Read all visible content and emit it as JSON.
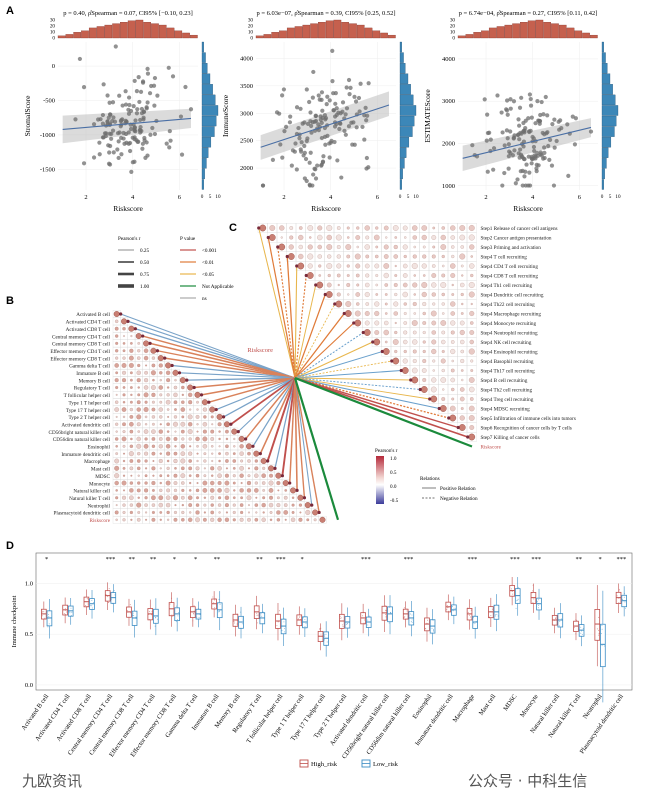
{
  "panels": {
    "a": "A",
    "b": "B",
    "c": "C",
    "d": "D"
  },
  "chart_data": [
    {
      "type": "scatter",
      "panel": "A",
      "subtitle": "p = 0.40, ρ̂Spearman = 0.07, CI95% [−0.10, 0.23]",
      "xlabel": "Riskscore",
      "ylabel": "StromalScore",
      "xlim": [
        0.8,
        6.8
      ],
      "ylim": [
        -1800,
        350
      ],
      "xticks": [
        2,
        4,
        6
      ],
      "yticks": [
        -1500,
        -1000,
        -500,
        0
      ],
      "fit": {
        "x": [
          1,
          6.5
        ],
        "y": [
          -920,
          -760
        ],
        "band_lo": [
          -1120,
          -900
        ],
        "band_hi": [
          -720,
          -620
        ]
      },
      "top_hist": [
        3,
        5,
        8,
        10,
        14,
        16,
        18,
        20,
        22,
        24,
        25,
        22,
        20,
        18,
        14,
        10,
        7,
        4
      ],
      "right_hist": [
        2,
        4,
        6,
        9,
        12,
        15,
        18,
        16,
        14,
        10,
        7,
        5,
        3,
        2
      ],
      "hist_ticks_top": [
        "0",
        "10",
        "20",
        "30"
      ],
      "hist_ticks_right": [
        "0",
        "5",
        "10"
      ]
    },
    {
      "type": "scatter",
      "panel": "A",
      "subtitle": "p = 6.03e−07, ρ̂Spearman = 0.39, CI95% [0.25, 0.52]",
      "xlabel": "Riskscore",
      "ylabel": "ImmuneScore",
      "xlim": [
        0.8,
        6.8
      ],
      "ylim": [
        1600,
        4300
      ],
      "xticks": [
        2,
        4,
        6
      ],
      "yticks": [
        2000,
        2500,
        3000,
        3500,
        4000
      ],
      "fit": {
        "x": [
          1,
          6.5
        ],
        "y": [
          2380,
          3150
        ],
        "band_lo": [
          2150,
          2950
        ],
        "band_hi": [
          2600,
          3400
        ]
      },
      "top_hist": [
        3,
        5,
        8,
        10,
        14,
        16,
        18,
        20,
        22,
        24,
        25,
        22,
        20,
        18,
        14,
        10,
        7,
        4
      ],
      "right_hist": [
        2,
        4,
        6,
        9,
        12,
        15,
        18,
        16,
        14,
        10,
        7,
        5,
        3,
        2
      ],
      "hist_ticks_top": [
        "0",
        "10",
        "20",
        "30"
      ],
      "hist_ticks_right": [
        "0",
        "5",
        "10"
      ]
    },
    {
      "type": "scatter",
      "panel": "A",
      "subtitle": "p = 6.74e−04, ρ̂Spearman = 0.27, CI95% [0.11, 0.42]",
      "xlabel": "Riskscore",
      "ylabel": "ESTIMATEScore",
      "xlim": [
        0.8,
        6.8
      ],
      "ylim": [
        900,
        4400
      ],
      "xticks": [
        2,
        4,
        6
      ],
      "yticks": [
        1000,
        2000,
        3000,
        4000
      ],
      "fit": {
        "x": [
          1,
          6.5
        ],
        "y": [
          1650,
          2380
        ],
        "band_lo": [
          1350,
          2150
        ],
        "band_hi": [
          1950,
          2600
        ]
      },
      "top_hist": [
        3,
        5,
        8,
        10,
        14,
        16,
        18,
        20,
        22,
        24,
        25,
        22,
        20,
        18,
        14,
        10,
        7,
        4
      ],
      "right_hist": [
        2,
        4,
        6,
        9,
        12,
        15,
        18,
        16,
        14,
        10,
        7,
        5,
        3,
        2
      ],
      "hist_ticks_top": [
        "0",
        "10",
        "20",
        "30"
      ],
      "hist_ticks_right": [
        "0",
        "5",
        "10"
      ]
    },
    {
      "type": "heatmap",
      "panel": "B",
      "categories": [
        "Activated B cell",
        "Activated CD4 T cell",
        "Activated CD8 T cell",
        "Central memory CD4 T cell",
        "Central memory CD8 T cell",
        "Effector memory CD4 T cell",
        "Effector memory CD8 T cell",
        "Gamma delta T cell",
        "Immature  B cell",
        "Memory B cell",
        "Regulatory T cell",
        "T follicular helper cell",
        "Type 1 T helper cell",
        "Type 17 T helper cell",
        "Type 2 T helper cell",
        "Activated dendritic cell",
        "CD56bright natural killer cell",
        "CD56dim natural killer cell",
        "Eosinophil",
        "Immature dendritic cell",
        "Macrophage",
        "Mast cell",
        "MDSC",
        "Monocyte",
        "Natural killer cell",
        "Natural killer T cell",
        "Neutrophil",
        "Plasmacytoid dendritic cell",
        "Riskscore"
      ],
      "hub_label": "Riskscore",
      "riskscore_links": [
        0.25,
        0.35,
        0.45,
        0.55,
        0.6,
        0.5,
        0.55,
        0.4,
        0.3,
        0.45,
        0.55,
        0.6,
        0.5,
        0.35,
        0.45,
        0.7,
        0.3,
        0.55,
        0.4,
        0.6,
        0.85,
        0.4,
        0.8,
        0.55,
        0.6,
        0.5,
        0.3,
        0.5
      ]
    },
    {
      "type": "heatmap",
      "panel": "C",
      "categories": [
        "Step1 Release of cancer cell antigens",
        "Step2 Cancer antigen presentation",
        "Step3 Priming and activation",
        "Step4 T cell recruiting",
        "Step4 CD4 T cell recruiting",
        "Step4 CD8 T cell recruiting",
        "Step4 Th1 cell recruiting",
        "Step4 Dendritic cell recruiting",
        "Step4 Th22 cell recruiting",
        "Step4 Macrophage recruiting",
        "Step4 Monocyte recruiting",
        "Step4 Neutrophil recruiting",
        "Step4 NK cell recruiting",
        "Step4 Eosinophil recruiting",
        "Step4 Basophil recruiting",
        "Step4 Th17 cell recruiting",
        "Step4 B cell recruiting",
        "Step4 Th2 cell recruiting",
        "Step4 Treg cell recruiting",
        "Step4 MDSC recruiting",
        "Step5 Infiltration of immune cells into tumors",
        "Step6 Recognition of cancer cells by T cells",
        "Step7 Killing of cancer cells",
        "Riskscore"
      ],
      "riskscore_links": [
        0.4,
        0.55,
        0.5,
        0.6,
        0.45,
        0.5,
        0.35,
        0.55,
        0.3,
        0.6,
        0.5,
        0.4,
        0.45,
        0.35,
        0.3,
        0.4,
        0.3,
        0.35,
        0.3,
        0.45,
        0.6,
        0.7,
        0.9
      ]
    },
    {
      "type": "box",
      "panel": "D",
      "ylabel": "Immune checkpoint",
      "ylim": [
        -0.05,
        1.3
      ],
      "yticks": [
        "0.0",
        "0.5",
        "1.0"
      ],
      "categories": [
        "Activated B cell",
        "Activated CD4 T cell",
        "Activated CD8 T cell",
        "Central memory CD4 T cell",
        "Central memory CD8 T cell",
        "Effector memory CD4 T cell",
        "Effector memory CD8 T cell",
        "Gamma delta T cell",
        "Immature  B cell",
        "Memory B cell",
        "Regulatory T cell",
        "T follicular helper cell",
        "Type 1 T helper cell",
        "Type 17 T helper cell",
        "Type 2 T helper cell",
        "Activated dendritic cell",
        "CD56bright natural killer cell",
        "CD56dim natural killer cell",
        "Eosinophil",
        "Immature dendritic cell",
        "Macrophage",
        "Mast cell",
        "MDSC",
        "Monocyte",
        "Natural killer cell",
        "Natural killer T cell",
        "Neutrophil",
        "Plasmacytoid dendritic cell"
      ],
      "significance": [
        "*",
        "",
        "",
        "***",
        "**",
        "**",
        "*",
        "*",
        "**",
        "",
        "**",
        "***",
        "*",
        "",
        "",
        "***",
        "",
        "***",
        "",
        "",
        "***",
        "",
        "***",
        "***",
        "",
        "**",
        "*",
        "***"
      ],
      "series": [
        {
          "name": "High_risk",
          "color": "#c0504d",
          "median": [
            0.7,
            0.74,
            0.82,
            0.88,
            0.72,
            0.7,
            0.75,
            0.72,
            0.8,
            0.64,
            0.72,
            0.63,
            0.64,
            0.48,
            0.63,
            0.66,
            0.71,
            0.7,
            0.6,
            0.77,
            0.7,
            0.72,
            0.93,
            0.86,
            0.64,
            0.58,
            0.6,
            0.86
          ]
        },
        {
          "name": "Low_risk",
          "color": "#3c8dc4",
          "median": [
            0.66,
            0.73,
            0.8,
            0.86,
            0.66,
            0.68,
            0.7,
            0.7,
            0.74,
            0.62,
            0.66,
            0.58,
            0.62,
            0.46,
            0.62,
            0.62,
            0.7,
            0.66,
            0.58,
            0.74,
            0.62,
            0.72,
            0.88,
            0.8,
            0.64,
            0.54,
            0.4,
            0.83
          ]
        }
      ],
      "legend": [
        "High_risk",
        "Low_risk"
      ]
    }
  ],
  "legend_b": {
    "pearson_title": "Pearson's r",
    "pearson_values": [
      "0.25",
      "0.50",
      "0.75",
      "1.00"
    ],
    "p_title": "P value",
    "p_values": [
      "<0.001",
      "<0.01",
      "<0.05",
      "Not Applicable",
      "ns"
    ],
    "p_colors": [
      "#c0504d",
      "#e07b39",
      "#e8b64c",
      "#1b8a3c",
      "#aaaaaa"
    ]
  },
  "legend_c": {
    "pearson_title": "Pearson's r",
    "scale_values": [
      "1.0",
      "0.5",
      "0.0",
      "-0.5"
    ],
    "relations_title": "Relations",
    "relations": [
      "Positive Relation",
      "Negative Relation"
    ]
  },
  "watermark": {
    "left": "九欧资讯",
    "right": "公众号 · 中科生信"
  }
}
